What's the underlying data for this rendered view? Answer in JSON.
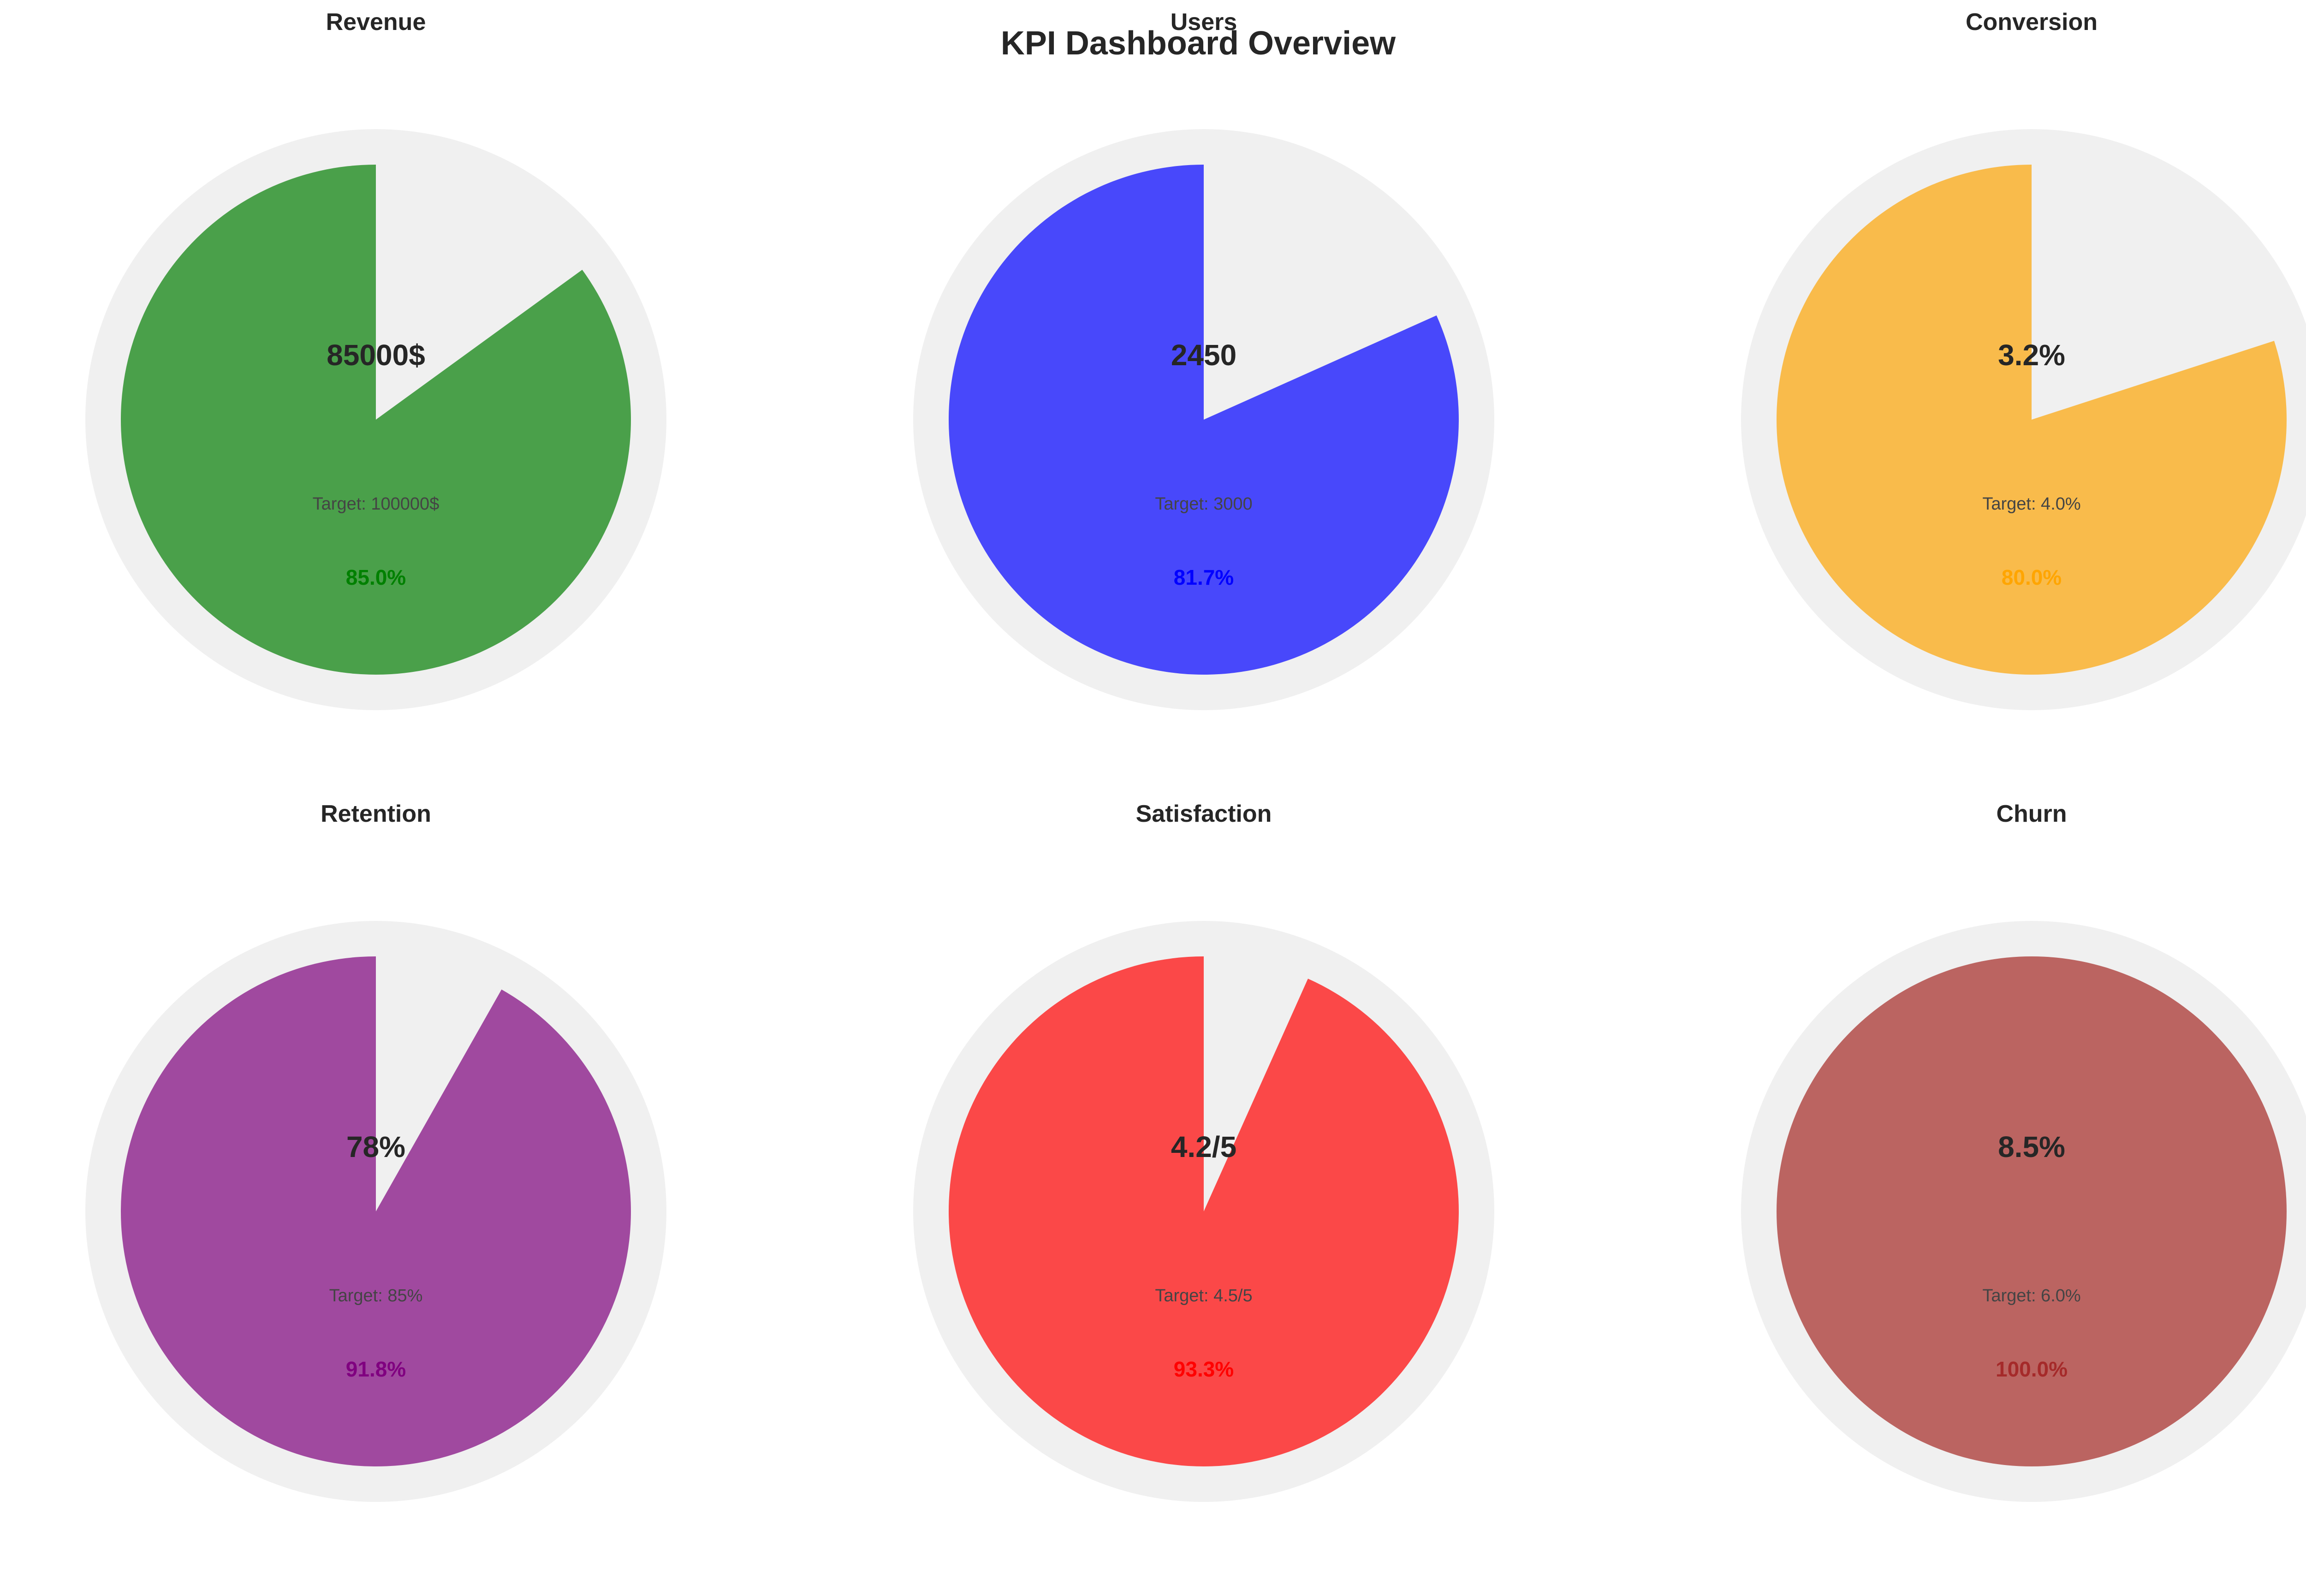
{
  "figure": {
    "title": "KPI Dashboard Overview"
  },
  "colors": {
    "track": "#f0f0f0",
    "text": "#262626",
    "target_text": "#444444"
  },
  "chart_data": {
    "type": "pie",
    "description_style": "gauge",
    "items": [
      {
        "key": "revenue",
        "title": "Revenue",
        "value_label": "85000$",
        "target_label": "Target: 100000$",
        "percent_label": "85.0%",
        "value": 85000,
        "target": 100000,
        "fraction": 0.85,
        "color": "#4aa04a",
        "label_color": "#008000"
      },
      {
        "key": "users",
        "title": "Users",
        "value_label": "2450",
        "target_label": "Target: 3000",
        "percent_label": "81.7%",
        "value": 2450,
        "target": 3000,
        "fraction": 0.817,
        "color": "#4848fb",
        "label_color": "#0000ff"
      },
      {
        "key": "conversion",
        "title": "Conversion",
        "value_label": "3.2%",
        "target_label": "Target: 4.0%",
        "percent_label": "80.0%",
        "value": 3.2,
        "target": 4.0,
        "fraction": 0.8,
        "color": "#f9bb4b",
        "label_color": "#ffa500"
      },
      {
        "key": "retention",
        "title": "Retention",
        "value_label": "78%",
        "target_label": "Target: 85%",
        "percent_label": "91.8%",
        "value": 78,
        "target": 85,
        "fraction": 0.918,
        "color": "#a0499f",
        "label_color": "#800080"
      },
      {
        "key": "satisfaction",
        "title": "Satisfaction",
        "value_label": "4.2/5",
        "target_label": "Target: 4.5/5",
        "percent_label": "93.3%",
        "value": 4.2,
        "target": 4.5,
        "fraction": 0.933,
        "color": "#fb4848",
        "label_color": "#ff0000"
      },
      {
        "key": "churn",
        "title": "Churn",
        "value_label": "8.5%",
        "target_label": "Target: 6.0%",
        "percent_label": "100.0%",
        "value": 8.5,
        "target": 6.0,
        "fraction": 1.0,
        "color": "#bb6461",
        "label_color": "#a52a2a"
      }
    ]
  }
}
